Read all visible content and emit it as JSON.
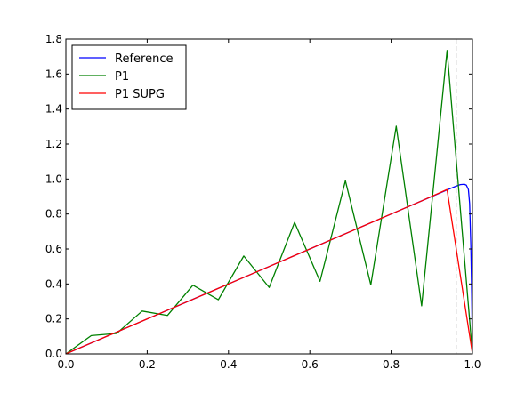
{
  "chart_data": {
    "type": "line",
    "xlim": [
      0.0,
      1.0
    ],
    "ylim": [
      0.0,
      1.8
    ],
    "xticks": [
      "0.0",
      "0.2",
      "0.4",
      "0.6",
      "0.8",
      "1.0"
    ],
    "yticks": [
      "0.0",
      "0.2",
      "0.4",
      "0.6",
      "0.8",
      "1.0",
      "1.2",
      "1.4",
      "1.6",
      "1.8"
    ],
    "xtick_values": [
      0.0,
      0.2,
      0.4,
      0.6,
      0.8,
      1.0
    ],
    "ytick_values": [
      0.0,
      0.2,
      0.4,
      0.6,
      0.8,
      1.0,
      1.2,
      1.4,
      1.6,
      1.8
    ],
    "legend_position": "top-left",
    "grid": false,
    "vline": {
      "x": 0.9597,
      "color": "#000000",
      "style": "dashed"
    },
    "series": [
      {
        "name": "Reference",
        "color": "#0000ff",
        "x": [
          0.0,
          0.1,
          0.2,
          0.3,
          0.4,
          0.5,
          0.6,
          0.7,
          0.8,
          0.9,
          0.95,
          0.97,
          0.98,
          0.985,
          0.99,
          0.993,
          0.996,
          0.998,
          1.0
        ],
        "y": [
          0.0,
          0.1,
          0.2,
          0.3,
          0.4,
          0.5,
          0.6,
          0.7,
          0.8,
          0.9,
          0.95,
          0.968,
          0.97,
          0.965,
          0.94,
          0.86,
          0.62,
          0.35,
          0.0
        ]
      },
      {
        "name": "P1",
        "color": "#008000",
        "x": [
          0.0,
          0.0625,
          0.125,
          0.1875,
          0.25,
          0.3125,
          0.375,
          0.4375,
          0.5,
          0.5625,
          0.625,
          0.6875,
          0.75,
          0.8125,
          0.875,
          0.9375,
          1.0
        ],
        "y": [
          0.0,
          0.105,
          0.117,
          0.245,
          0.22,
          0.393,
          0.31,
          0.56,
          0.38,
          0.752,
          0.415,
          0.99,
          0.395,
          1.302,
          0.275,
          1.735,
          0.0
        ]
      },
      {
        "name": "P1 SUPG",
        "color": "#ff0000",
        "x": [
          0.0,
          0.0625,
          0.125,
          0.1875,
          0.25,
          0.3125,
          0.375,
          0.4375,
          0.5,
          0.5625,
          0.625,
          0.6875,
          0.75,
          0.8125,
          0.875,
          0.9375,
          1.0
        ],
        "y": [
          0.0,
          0.0625,
          0.125,
          0.1875,
          0.25,
          0.3125,
          0.375,
          0.4375,
          0.5,
          0.5625,
          0.625,
          0.6875,
          0.75,
          0.8125,
          0.875,
          0.94,
          0.0
        ]
      }
    ]
  }
}
